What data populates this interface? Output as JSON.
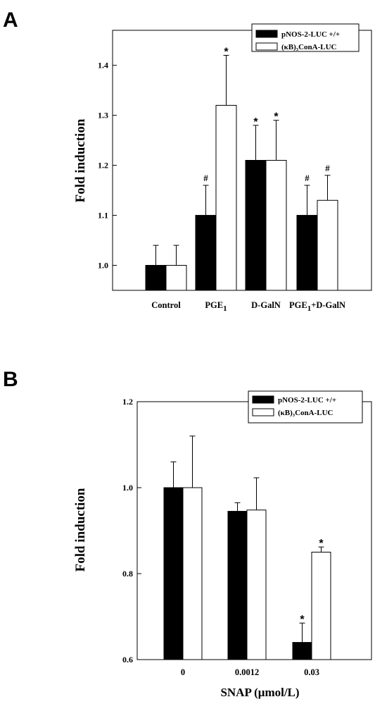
{
  "chart_data": [
    {
      "panel": "A",
      "type": "bar",
      "xlabel": "",
      "ylabel": "Fold induction",
      "ylim": [
        0.95,
        1.47
      ],
      "yticks": [
        "1.0",
        "1.1",
        "1.2",
        "1.3",
        "1.4"
      ],
      "yticks_values": [
        1.0,
        1.1,
        1.2,
        1.3,
        1.4
      ],
      "grid": false,
      "legend_position": "top-right",
      "categories": [
        {
          "base": "Control",
          "sub": "",
          "tail": ""
        },
        {
          "base": "PGE",
          "sub": "1",
          "tail": ""
        },
        {
          "base": "D-GalN",
          "sub": "",
          "tail": ""
        },
        {
          "base": "PGE",
          "sub": "1",
          "tail": "+D-GalN"
        }
      ],
      "series": [
        {
          "name": "pNOS-2-LUC +/+",
          "color": "#000000",
          "values": [
            1.0,
            1.1,
            1.21,
            1.1
          ],
          "errors": [
            0.04,
            0.06,
            0.07,
            0.06
          ],
          "annotations": [
            "",
            "#",
            "*",
            "#"
          ]
        },
        {
          "name": "(κB)₃ConA-LUC",
          "color": "#ffffff",
          "values": [
            1.0,
            1.32,
            1.21,
            1.13
          ],
          "errors": [
            0.04,
            0.1,
            0.08,
            0.05
          ],
          "annotations": [
            "",
            "*",
            "*",
            "#"
          ]
        }
      ]
    },
    {
      "panel": "B",
      "type": "bar",
      "xlabel": "SNAP (μmol/L)",
      "ylabel": "Fold induction",
      "ylim": [
        0.6,
        1.2
      ],
      "yticks": [
        "0.6",
        "0.8",
        "1.0",
        "1.2"
      ],
      "yticks_values": [
        0.6,
        0.8,
        1.0,
        1.2
      ],
      "grid": false,
      "legend_position": "top-right",
      "categories": [
        {
          "base": "0",
          "sub": "",
          "tail": ""
        },
        {
          "base": "0.0012",
          "sub": "",
          "tail": ""
        },
        {
          "base": "0.03",
          "sub": "",
          "tail": ""
        }
      ],
      "series": [
        {
          "name": "pNOS-2-LUC +/+",
          "color": "#000000",
          "values": [
            1.0,
            0.945,
            0.64
          ],
          "errors": [
            0.06,
            0.02,
            0.045
          ],
          "annotations": [
            "",
            "",
            "*"
          ]
        },
        {
          "name": "(κB)₃ConA-LUC",
          "color": "#ffffff",
          "values": [
            1.0,
            0.948,
            0.85
          ],
          "errors": [
            0.12,
            0.075,
            0.012
          ],
          "annotations": [
            "",
            "",
            "*"
          ]
        }
      ]
    }
  ]
}
